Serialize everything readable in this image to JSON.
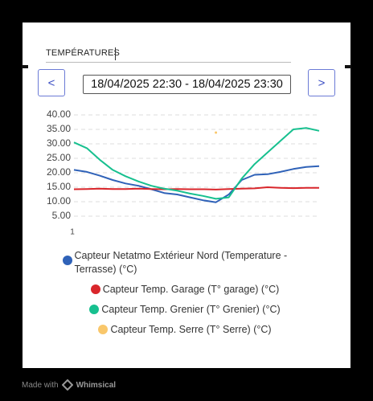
{
  "header": {
    "title": "TEMPÉRATURES"
  },
  "nav": {
    "prev": "<",
    "range": "18/04/2025 22:30 - 18/04/2025 23:30",
    "next": ">"
  },
  "footer": {
    "made_with": "Made with",
    "brand": "Whimsical"
  },
  "chart_data": {
    "type": "line",
    "x": [
      1,
      2,
      3,
      4,
      5,
      6,
      7,
      8,
      9,
      10,
      11,
      12,
      13,
      14,
      15,
      16,
      17,
      18,
      19,
      20
    ],
    "xlim": [
      1,
      20
    ],
    "xticks": [
      1
    ],
    "ylim": [
      5,
      40
    ],
    "yticks": [
      {
        "value": 5,
        "label": "5.00"
      },
      {
        "value": 10,
        "label": "10.00"
      },
      {
        "value": 15,
        "label": "15.00"
      },
      {
        "value": 20,
        "label": "20.00"
      },
      {
        "value": 25,
        "label": "25.00"
      },
      {
        "value": 30,
        "label": "30.00"
      },
      {
        "value": 35,
        "label": "35.00"
      },
      {
        "value": 40,
        "label": "40.00"
      }
    ],
    "grid": true,
    "series": [
      {
        "name": "Capteur Netatmo Extérieur Nord (Temperature - Terrasse) (°C)",
        "color": "#2f62b8",
        "values": [
          21,
          20.3,
          19,
          17.5,
          16.3,
          15.5,
          14.3,
          13,
          12.5,
          11.5,
          10.5,
          9.8,
          12.5,
          17.5,
          19.3,
          19.5,
          20.3,
          21.3,
          22,
          22.3
        ]
      },
      {
        "name": "Capteur Temp. Garage (T° garage) (°C)",
        "color": "#d9262b",
        "values": [
          14.3,
          14.4,
          14.5,
          14.4,
          14.4,
          14.5,
          14.4,
          14.3,
          14.4,
          14.3,
          14.3,
          14.2,
          14.4,
          14.5,
          14.6,
          15,
          14.8,
          14.7,
          14.8,
          14.8
        ]
      },
      {
        "name": "Capteur Temp. Grenier (T° Grenier) (°C)",
        "color": "#17c08f",
        "values": [
          30.5,
          28.5,
          24.5,
          21,
          18.8,
          17,
          15.5,
          14.5,
          13.8,
          12.8,
          12,
          11,
          11.5,
          18,
          23,
          27,
          31,
          35,
          35.5,
          34.5
        ]
      },
      {
        "name": "Capteur Temp. Serre (T° Serre) (°C)",
        "color": "#f9c76b",
        "values": [
          null,
          null,
          null,
          null,
          null,
          null,
          null,
          null,
          null,
          null,
          null,
          33.9,
          null,
          null,
          null,
          null,
          null,
          null,
          null,
          null
        ]
      }
    ]
  }
}
